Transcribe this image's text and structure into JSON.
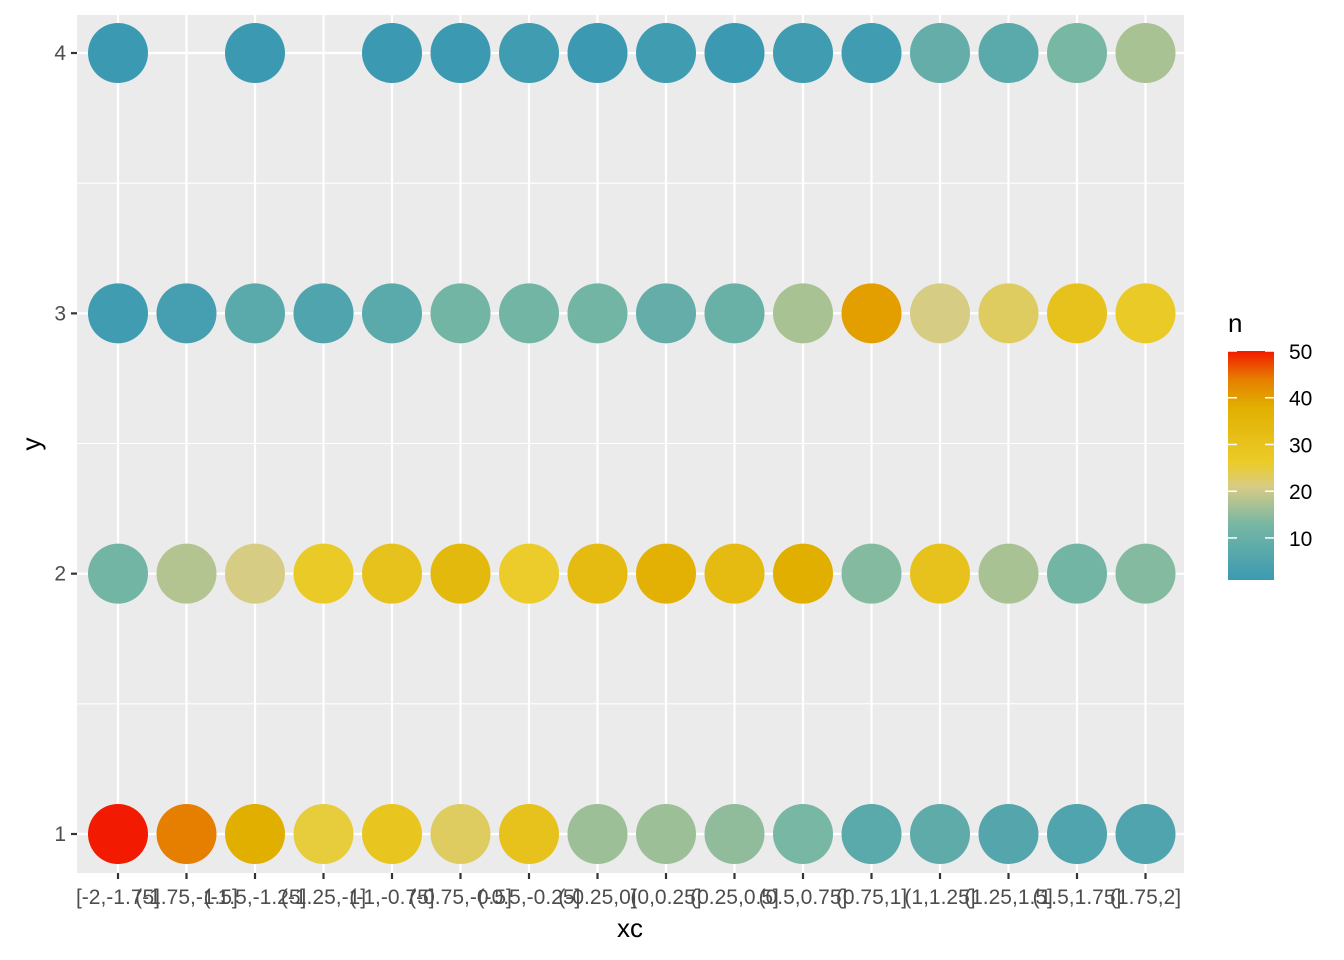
{
  "chart_data": {
    "type": "scatter",
    "title": "",
    "xlabel": "xc",
    "ylabel": "y",
    "x_categories": [
      "[-2,-1.75]",
      "(-1.75,-1.5]",
      "(-1.5,-1.25]",
      "(-1.25,-1]",
      "(-1,-0.75]",
      "(-0.75,-0.5]",
      "(-0.5,-0.25]",
      "(-0.25,0]",
      "(0,0.25]",
      "(0.25,0.5]",
      "(0.5,0.75]",
      "(0.75,1]",
      "(1,1.25]",
      "(1.25,1.5]",
      "(1.5,1.75]",
      "(1.75,2]"
    ],
    "y_ticks": [
      1,
      2,
      3,
      4
    ],
    "ylim": [
      0.85,
      4.15
    ],
    "grid": true,
    "color_scale": {
      "title": "n",
      "breaks": [
        10,
        20,
        30,
        40,
        50
      ],
      "range": [
        1,
        50
      ],
      "stops": [
        {
          "value": 1,
          "color": "#3B9AB2"
        },
        {
          "value": 13,
          "color": "#78B7A3"
        },
        {
          "value": 21,
          "color": "#D7CC84"
        },
        {
          "value": 26,
          "color": "#EBCC2A"
        },
        {
          "value": 38,
          "color": "#E1AF00"
        },
        {
          "value": 44,
          "color": "#E67E00"
        },
        {
          "value": 50,
          "color": "#F21A00"
        }
      ],
      "placement": "right"
    },
    "points": [
      {
        "x": "[-2,-1.75]",
        "y": 1,
        "n": 50
      },
      {
        "x": "(-1.75,-1.5]",
        "y": 1,
        "n": 44
      },
      {
        "x": "(-1.5,-1.25]",
        "y": 1,
        "n": 38
      },
      {
        "x": "(-1.25,-1]",
        "y": 1,
        "n": 25
      },
      {
        "x": "(-1,-0.75]",
        "y": 1,
        "n": 29
      },
      {
        "x": "(-0.75,-0.5]",
        "y": 1,
        "n": 23
      },
      {
        "x": "(-0.5,-0.25]",
        "y": 1,
        "n": 30
      },
      {
        "x": "(-0.25,0]",
        "y": 1,
        "n": 16
      },
      {
        "x": "(0,0.25]",
        "y": 1,
        "n": 16
      },
      {
        "x": "(0.25,0.5]",
        "y": 1,
        "n": 15
      },
      {
        "x": "(0.5,0.75]",
        "y": 1,
        "n": 13
      },
      {
        "x": "(0.75,1]",
        "y": 1,
        "n": 7
      },
      {
        "x": "(1,1.25]",
        "y": 1,
        "n": 8
      },
      {
        "x": "(1.25,1.5]",
        "y": 1,
        "n": 6
      },
      {
        "x": "(1.5,1.75]",
        "y": 1,
        "n": 5
      },
      {
        "x": "(1.75,2]",
        "y": 1,
        "n": 5
      },
      {
        "x": "[-2,-1.75]",
        "y": 2,
        "n": 12
      },
      {
        "x": "(-1.75,-1.5]",
        "y": 2,
        "n": 18
      },
      {
        "x": "(-1.5,-1.25]",
        "y": 2,
        "n": 21
      },
      {
        "x": "(-1.25,-1]",
        "y": 2,
        "n": 27
      },
      {
        "x": "(-1,-0.75]",
        "y": 2,
        "n": 30
      },
      {
        "x": "(-0.75,-0.5]",
        "y": 2,
        "n": 34
      },
      {
        "x": "(-0.5,-0.25]",
        "y": 2,
        "n": 26
      },
      {
        "x": "(-0.25,0]",
        "y": 2,
        "n": 33
      },
      {
        "x": "(0,0.25]",
        "y": 2,
        "n": 37
      },
      {
        "x": "(0.25,0.5]",
        "y": 2,
        "n": 33
      },
      {
        "x": "(0.5,0.75]",
        "y": 2,
        "n": 38
      },
      {
        "x": "(0.75,1]",
        "y": 2,
        "n": 14
      },
      {
        "x": "(1,1.25]",
        "y": 2,
        "n": 30
      },
      {
        "x": "(1.25,1.5]",
        "y": 2,
        "n": 17
      },
      {
        "x": "(1.5,1.75]",
        "y": 2,
        "n": 12
      },
      {
        "x": "(1.75,2]",
        "y": 2,
        "n": 14
      },
      {
        "x": "[-2,-1.75]",
        "y": 3,
        "n": 2
      },
      {
        "x": "(-1.75,-1.5]",
        "y": 3,
        "n": 3
      },
      {
        "x": "(-1.5,-1.25]",
        "y": 3,
        "n": 7
      },
      {
        "x": "(-1.25,-1]",
        "y": 3,
        "n": 5
      },
      {
        "x": "(-1,-0.75]",
        "y": 3,
        "n": 7
      },
      {
        "x": "(-0.75,-0.5]",
        "y": 3,
        "n": 12
      },
      {
        "x": "(-0.5,-0.25]",
        "y": 3,
        "n": 12
      },
      {
        "x": "(-0.25,0]",
        "y": 3,
        "n": 12
      },
      {
        "x": "(0,0.25]",
        "y": 3,
        "n": 9
      },
      {
        "x": "(0.25,0.5]",
        "y": 3,
        "n": 10
      },
      {
        "x": "(0.5,0.75]",
        "y": 3,
        "n": 17
      },
      {
        "x": "(0.75,1]",
        "y": 3,
        "n": 40
      },
      {
        "x": "(1,1.25]",
        "y": 3,
        "n": 21
      },
      {
        "x": "(1.25,1.5]",
        "y": 3,
        "n": 23
      },
      {
        "x": "(1.5,1.75]",
        "y": 3,
        "n": 30
      },
      {
        "x": "(1.75,2]",
        "y": 3,
        "n": 27
      },
      {
        "x": "[-2,-1.75]",
        "y": 4,
        "n": 1
      },
      {
        "x": "(-1.5,-1.25]",
        "y": 4,
        "n": 1
      },
      {
        "x": "(-1,-0.75]",
        "y": 4,
        "n": 1
      },
      {
        "x": "(-0.75,-0.5]",
        "y": 4,
        "n": 1
      },
      {
        "x": "(-0.5,-0.25]",
        "y": 4,
        "n": 2
      },
      {
        "x": "(-0.25,0]",
        "y": 4,
        "n": 1
      },
      {
        "x": "(0,0.25]",
        "y": 4,
        "n": 2
      },
      {
        "x": "(0.25,0.5]",
        "y": 4,
        "n": 1
      },
      {
        "x": "(0.5,0.75]",
        "y": 4,
        "n": 2
      },
      {
        "x": "(0.75,1]",
        "y": 4,
        "n": 2
      },
      {
        "x": "(1,1.25]",
        "y": 4,
        "n": 9
      },
      {
        "x": "(1.25,1.5]",
        "y": 4,
        "n": 7
      },
      {
        "x": "(1.5,1.75]",
        "y": 4,
        "n": 13
      },
      {
        "x": "(1.75,2]",
        "y": 4,
        "n": 17
      }
    ]
  }
}
